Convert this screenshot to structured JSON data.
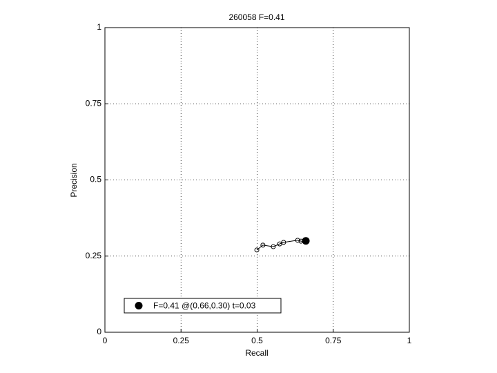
{
  "chart_data": {
    "type": "line",
    "title": "260058 F=0.41",
    "xlabel": "Recall",
    "ylabel": "Precision",
    "xlim": [
      0,
      1
    ],
    "ylim": [
      0,
      1
    ],
    "xticks": [
      0,
      0.25,
      0.5,
      0.75,
      1
    ],
    "yticks": [
      0,
      0.25,
      0.5,
      0.75,
      1
    ],
    "grid": true,
    "legend": "lower left",
    "series": [
      {
        "color": "#000000",
        "x": [
          0.499,
          0.519,
          0.553,
          0.574,
          0.587,
          0.633,
          0.644,
          0.658
        ],
        "values": [
          0.27,
          0.286,
          0.281,
          0.29,
          0.295,
          0.302,
          0.299,
          0.297
        ]
      }
    ],
    "best": {
      "name": "F=0.41 @(0.66,0.30) t=0.03",
      "color": "#000000",
      "x": 0.66,
      "y": 0.3
    }
  }
}
